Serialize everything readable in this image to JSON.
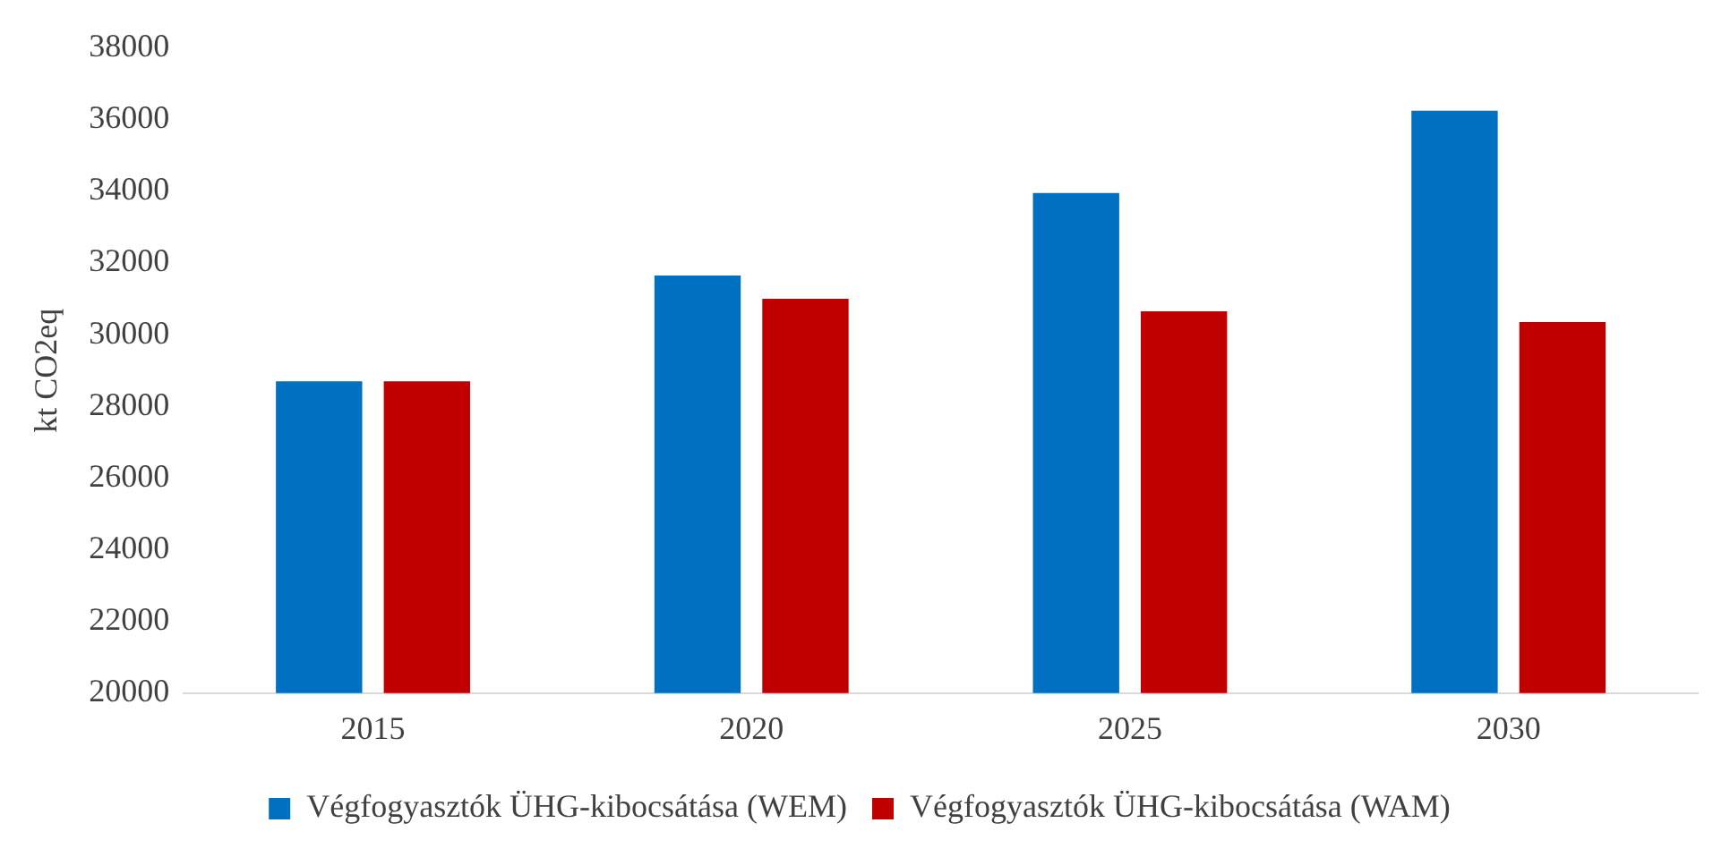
{
  "chart_data": {
    "type": "bar",
    "ylabel": "kt CO2eq",
    "categories": [
      "2015",
      "2020",
      "2025",
      "2030"
    ],
    "series": [
      {
        "name": "Végfogyasztók ÜHG-kibocsátása (WEM)",
        "color": "#0070c0",
        "values": [
          28700,
          31650,
          33950,
          36250
        ]
      },
      {
        "name": "Végfogyasztók ÜHG-kibocsátása (WAM)",
        "color": "#c00000",
        "values": [
          28700,
          31000,
          30650,
          30350
        ]
      }
    ],
    "ylim": [
      20000,
      38000
    ],
    "yticks": [
      20000,
      22000,
      24000,
      26000,
      28000,
      30000,
      32000,
      34000,
      36000,
      38000
    ],
    "grid": false,
    "legend": "bottom"
  }
}
